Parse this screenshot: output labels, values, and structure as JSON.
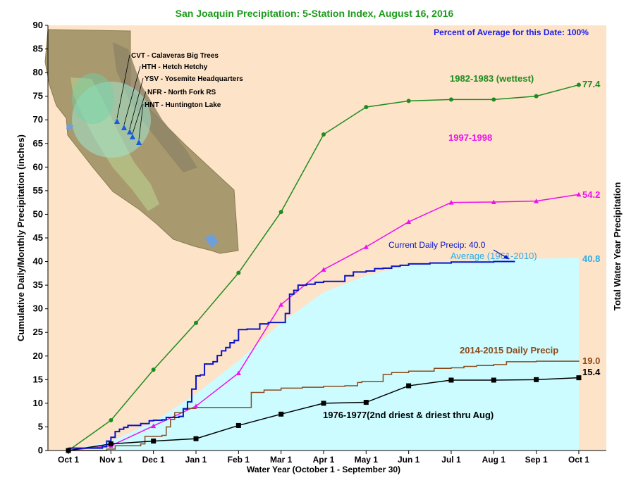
{
  "chart_data": {
    "type": "line",
    "title": "San Joaquin Precipitation: 5-Station Index, August 16, 2016",
    "subtitle": "Percent of Average for this Date: 100%",
    "xlabel": "Water Year (October 1 - September 30)",
    "ylabel": "Cumulative Daily/Monthly Precipitation (inches)",
    "ylabel_right": "Total Water Year Precipitation",
    "x_tick_labels": [
      "Oct 1",
      "Nov 1",
      "Dec 1",
      "Jan 1",
      "Feb 1",
      "Mar 1",
      "Apr 1",
      "May 1",
      "Jun 1",
      "Jul 1",
      "Aug 1",
      "Sep 1",
      "Oct 1"
    ],
    "ylim": [
      0,
      90
    ],
    "y_ticks": [
      0,
      5,
      10,
      15,
      20,
      25,
      30,
      35,
      40,
      45,
      50,
      55,
      60,
      65,
      70,
      75,
      80,
      85,
      90
    ],
    "grid": false,
    "colors": {
      "background": "#fde3c8",
      "average_fill": "#ccfcff",
      "title": "#1a9a1a",
      "subtitle": "#1a1aee"
    },
    "station_map": {
      "stations": [
        "CVT - Calaveras Big Trees",
        "HTH - Hetch Hetchy",
        "YSV - Yosemite Headquarters",
        "NFR - North Fork RS",
        "HNT - Huntington Lake"
      ]
    },
    "annotations": {
      "current": "Current Daily Precip: 40.0",
      "average": "Average (1961-2010)",
      "average_total": "40.8"
    },
    "series": [
      {
        "name": "1982-1983 (wettest)",
        "color": "#1f8c1f",
        "marker": "circle",
        "total_label": "77.4",
        "x": [
          0,
          1,
          2,
          3,
          4,
          5,
          6,
          7,
          8,
          9,
          10,
          11,
          12
        ],
        "values": [
          0,
          6.4,
          17.1,
          27.0,
          37.6,
          50.5,
          66.9,
          72.7,
          74.0,
          74.3,
          74.3,
          75.0,
          77.4
        ]
      },
      {
        "name": "1997-1998",
        "color": "#ee11ee",
        "marker": "triangle",
        "total_label": "54.2",
        "x": [
          0,
          1,
          2,
          3,
          4,
          5,
          6,
          7,
          8,
          9,
          10,
          11,
          12
        ],
        "values": [
          0,
          1.0,
          5.2,
          9.4,
          16.4,
          30.9,
          38.3,
          43.1,
          48.4,
          52.5,
          52.6,
          52.8,
          54.2
        ]
      },
      {
        "name": "2014-2015 Daily Precip",
        "color": "#8b4a1a",
        "marker": "none",
        "total_label": "19.0",
        "x": [
          0,
          0.9,
          1.1,
          1.7,
          1.8,
          2.2,
          2.3,
          2.4,
          2.5,
          2.7,
          3.0,
          3.3,
          3.7,
          4.0,
          4.2,
          4.3,
          4.6,
          5.0,
          5.5,
          6.0,
          6.5,
          6.8,
          6.9,
          7.4,
          7.6,
          8.0,
          8.6,
          9.0,
          9.3,
          9.6,
          10.0,
          10.3,
          11.0,
          12.0
        ],
        "values": [
          0,
          0.3,
          1.0,
          1.4,
          3.0,
          3.2,
          5.0,
          6.6,
          8.0,
          8.9,
          9.1,
          9.1,
          9.1,
          9.1,
          9.1,
          12.3,
          12.8,
          13.2,
          13.4,
          13.6,
          13.7,
          14.4,
          14.6,
          16.1,
          16.5,
          16.8,
          17.4,
          17.5,
          17.8,
          18.0,
          18.2,
          18.8,
          18.9,
          19.0
        ]
      },
      {
        "name": "1976-1977(2nd driest & driest thru Aug)",
        "color": "#000000",
        "marker": "square",
        "total_label": "15.4",
        "x": [
          0,
          1,
          2,
          3,
          4,
          5,
          6,
          7,
          8,
          9,
          10,
          11,
          12
        ],
        "values": [
          0,
          1.4,
          2.0,
          2.5,
          5.3,
          7.7,
          10.0,
          10.2,
          13.7,
          14.9,
          14.9,
          15.0,
          15.4
        ]
      },
      {
        "name": "Current Daily Precip",
        "color": "#0a14c8",
        "marker": "none",
        "x": [
          0,
          0.8,
          0.9,
          1.0,
          1.1,
          1.2,
          1.3,
          1.4,
          1.7,
          1.9,
          2.0,
          2.2,
          2.3,
          2.6,
          2.7,
          2.8,
          2.9,
          3.0,
          3.1,
          3.2,
          3.4,
          3.5,
          3.6,
          3.7,
          3.8,
          3.9,
          4.0,
          4.2,
          4.4,
          4.5,
          4.7,
          4.8,
          5.0,
          5.1,
          5.2,
          5.3,
          5.4,
          5.6,
          5.8,
          6.0,
          6.2,
          6.4,
          6.5,
          6.7,
          7.0,
          7.2,
          7.4,
          7.6,
          7.8,
          8.0,
          8.5,
          9.0,
          9.5,
          10.0,
          10.5
        ],
        "values": [
          0.5,
          0.8,
          2.0,
          2.8,
          4.0,
          4.5,
          4.9,
          5.3,
          5.7,
          6.3,
          6.4,
          6.5,
          7.0,
          7.2,
          8.8,
          10.3,
          13.0,
          15.8,
          16.0,
          18.3,
          18.8,
          20.1,
          21.1,
          21.8,
          22.8,
          23.3,
          25.6,
          25.7,
          25.7,
          26.8,
          27.1,
          27.1,
          27.1,
          29.0,
          33.1,
          33.9,
          35.0,
          35.2,
          35.6,
          35.8,
          35.8,
          35.8,
          37.0,
          37.8,
          38.0,
          38.5,
          38.6,
          39.0,
          39.2,
          39.5,
          39.7,
          39.9,
          39.9,
          40.0,
          40.0
        ]
      },
      {
        "name": "Average (1961-2010)",
        "color": "#ccfcff",
        "marker": "none",
        "x": [
          0,
          1,
          2,
          3,
          4,
          5,
          6,
          7,
          8,
          9,
          10,
          11,
          12
        ],
        "values": [
          0,
          2.0,
          6.0,
          12.0,
          19.0,
          27.0,
          33.5,
          37.0,
          39.3,
          40.0,
          40.3,
          40.6,
          40.8
        ]
      }
    ]
  }
}
